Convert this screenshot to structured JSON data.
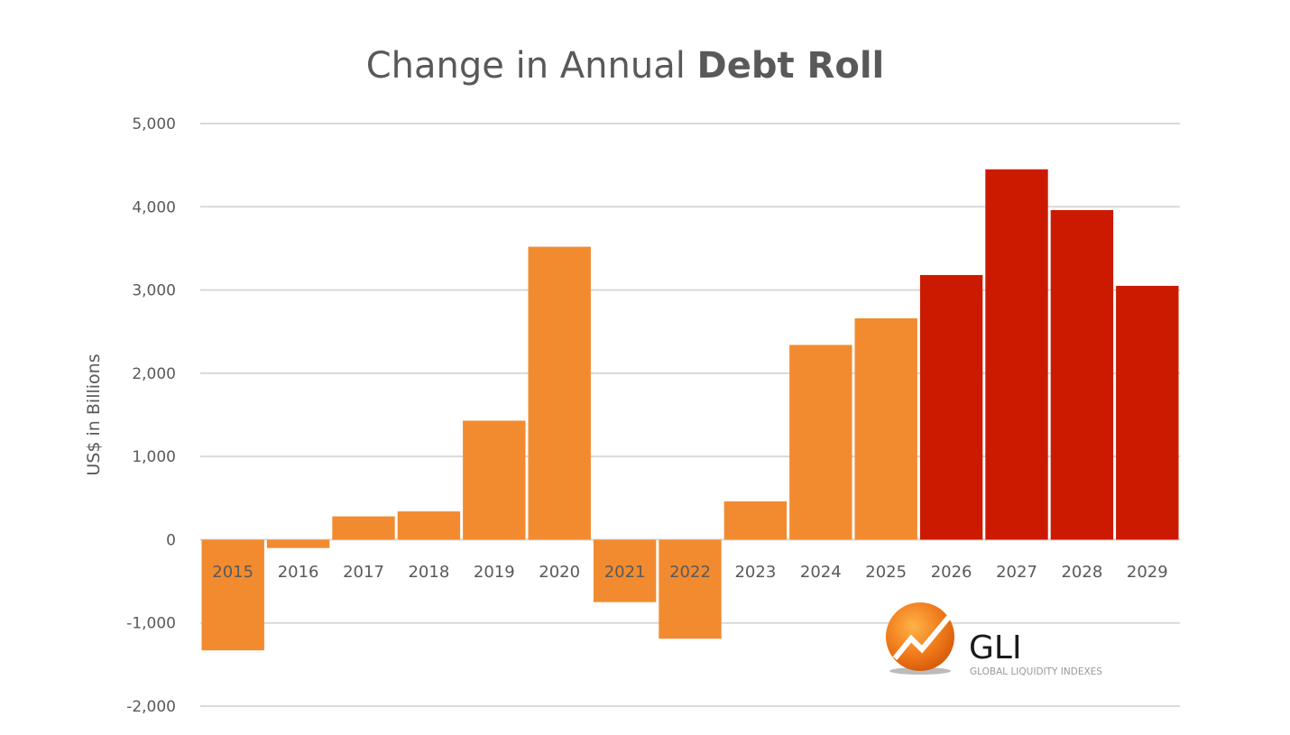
{
  "chart_data": {
    "type": "bar",
    "title_regular": "Change in Annual ",
    "title_bold": "Debt Roll",
    "ylabel": "US$ in Billions",
    "xlabel": "",
    "ylim": [
      -2000,
      5000
    ],
    "yticks": [
      5000,
      4000,
      3000,
      2000,
      1000,
      0,
      -1000,
      -2000
    ],
    "ytick_labels": [
      "5,000",
      "4,000",
      "3,000",
      "2,000",
      "1,000",
      "0",
      "-1,000",
      "-2,000"
    ],
    "grid": true,
    "categories": [
      "2015",
      "2016",
      "2017",
      "2018",
      "2019",
      "2020",
      "2021",
      "2022",
      "2023",
      "2024",
      "2025",
      "2026",
      "2027",
      "2028",
      "2029"
    ],
    "values": [
      -1330,
      -100,
      280,
      340,
      1430,
      3520,
      -750,
      -1190,
      460,
      2340,
      2660,
      3180,
      4450,
      3960,
      3050
    ],
    "bar_colors": [
      "#F28B30",
      "#F28B30",
      "#F28B30",
      "#F28B30",
      "#F28B30",
      "#F28B30",
      "#F28B30",
      "#F28B30",
      "#F28B30",
      "#F28B30",
      "#F28B30",
      "#CC1A00",
      "#CC1A00",
      "#CC1A00",
      "#CC1A00"
    ]
  },
  "logo": {
    "name": "GLI",
    "tagline": "GLOBAL LIQUIDITY INDEXES"
  },
  "colors": {
    "actual": "#F28B30",
    "projected": "#CC1A00",
    "grid": "#D9D9D9",
    "text": "#595959"
  }
}
